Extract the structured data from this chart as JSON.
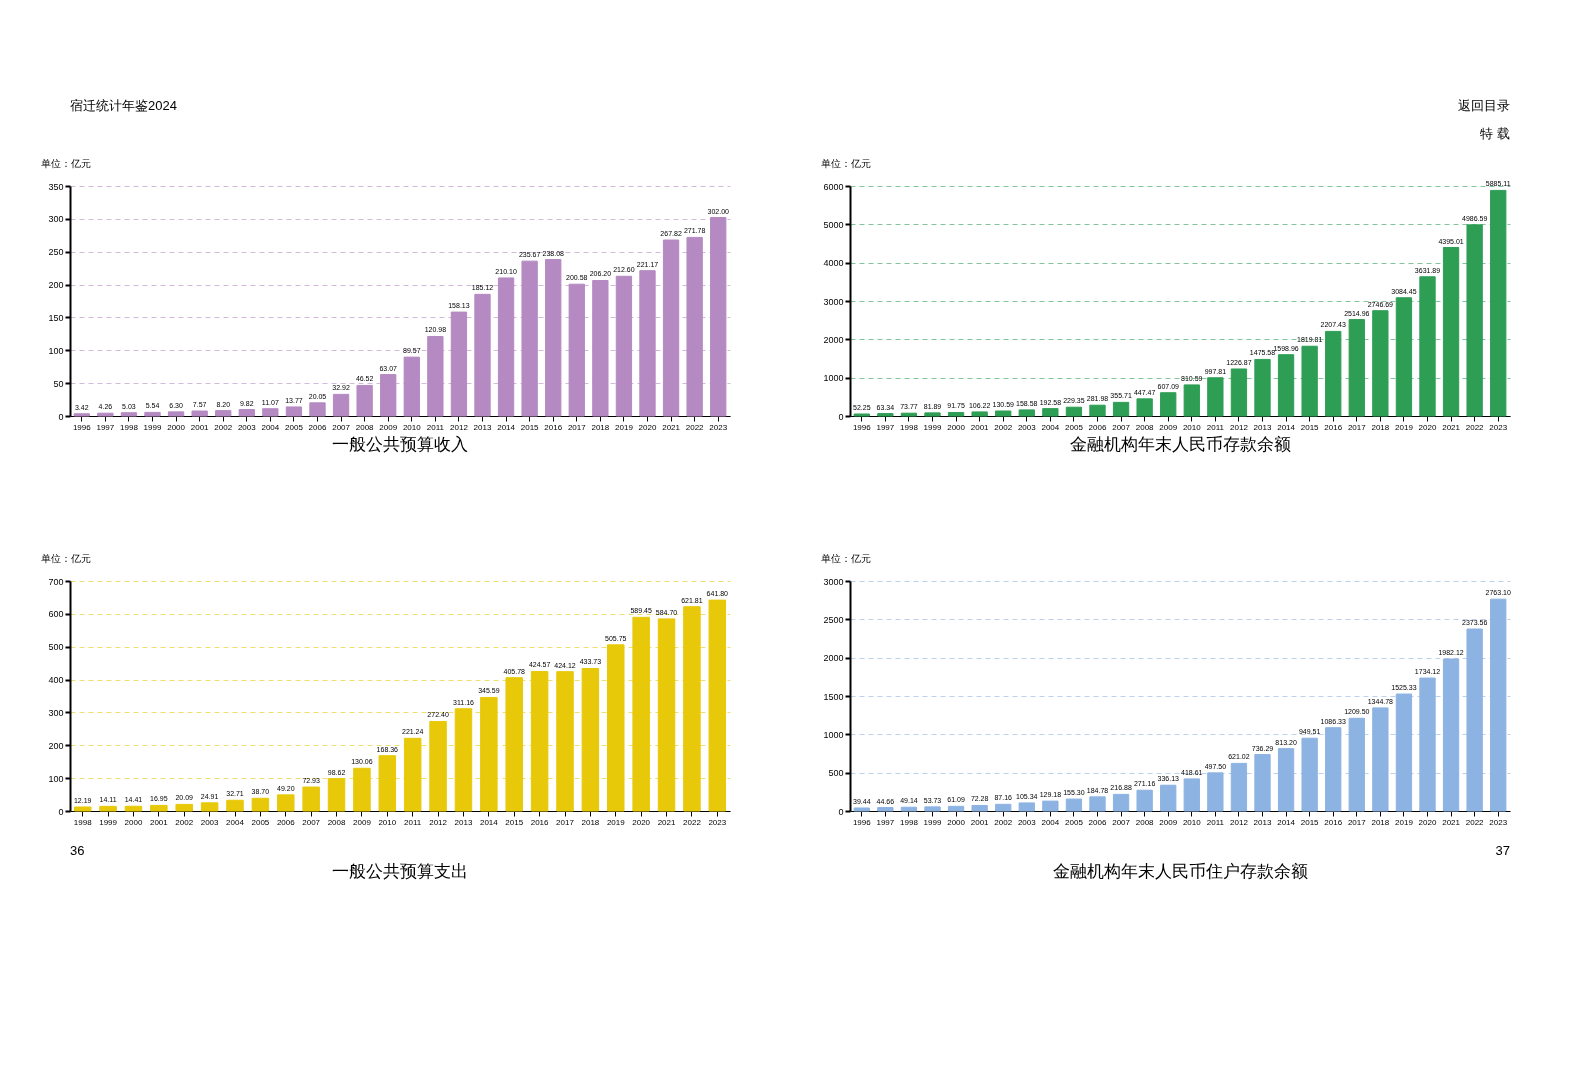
{
  "chart_data": [
    {
      "type": "bar",
      "title": "一般公共预算收入",
      "ylabel": "单位：亿元",
      "annotations": [
        "宿迁统计年鉴2024"
      ],
      "color": "#b58ac2",
      "grid": "y",
      "ylim": [
        0,
        350
      ],
      "yticks": [
        0,
        50,
        100,
        150,
        200,
        250,
        300,
        350
      ],
      "categories": [
        "1996",
        "1997",
        "1998",
        "1999",
        "2000",
        "2001",
        "2002",
        "2003",
        "2004",
        "2005",
        "2006",
        "2007",
        "2008",
        "2009",
        "2010",
        "2011",
        "2012",
        "2013",
        "2014",
        "2015",
        "2016",
        "2017",
        "2018",
        "2019",
        "2020",
        "2021",
        "2022",
        "2023"
      ],
      "values": [
        3.42,
        4.26,
        5.03,
        5.54,
        6.3,
        7.57,
        8.2,
        9.82,
        11.07,
        13.77,
        20.05,
        32.92,
        46.52,
        63.07,
        89.57,
        120.98,
        158.13,
        185.12,
        210.1,
        235.67,
        238.08,
        200.58,
        206.2,
        212.6,
        221.17,
        267.82,
        271.78,
        302.0
      ],
      "value_labels": [
        "3.42",
        "4.26",
        "5.03",
        "5.54",
        "6.30",
        "7.57",
        "8.20",
        "9.82",
        "11.07",
        "13.77",
        "20.05",
        "32.92",
        "46.52",
        "63.07",
        "89.57",
        "120.98",
        "158.13",
        "185.12",
        "210.10",
        "235.67",
        "238.08",
        "200.58",
        "206.20",
        "212.60",
        "221.17",
        "267.82",
        "271.78",
        "302.00"
      ]
    },
    {
      "type": "bar",
      "title": "金融机构年末人民币存款余额",
      "ylabel": "单位：亿元",
      "annotations": [
        "返回目录",
        "特  载"
      ],
      "color": "#2f9e55",
      "grid": "y",
      "ylim": [
        0,
        6000
      ],
      "yticks": [
        0,
        1000,
        2000,
        3000,
        4000,
        5000,
        6000
      ],
      "categories": [
        "1996",
        "1997",
        "1998",
        "1999",
        "2000",
        "2001",
        "2002",
        "2003",
        "2004",
        "2005",
        "2006",
        "2007",
        "2008",
        "2009",
        "2010",
        "2011",
        "2012",
        "2013",
        "2014",
        "2015",
        "2016",
        "2017",
        "2018",
        "2019",
        "2020",
        "2021",
        "2022",
        "2023"
      ],
      "values": [
        52.25,
        63.34,
        73.77,
        81.89,
        91.75,
        106.22,
        130.59,
        158.58,
        192.58,
        229.35,
        281.98,
        355.71,
        447.47,
        607.09,
        810.59,
        997.81,
        1226.87,
        1475.58,
        1598.96,
        1819.81,
        2207.43,
        2514.96,
        2746.69,
        3084.45,
        3631.89,
        4395.01,
        4986.59,
        5885.11
      ],
      "value_labels": [
        "52.25",
        "63.34",
        "73.77",
        "81.89",
        "91.75",
        "106.22",
        "130.59",
        "158.58",
        "192.58",
        "229.35",
        "281.98",
        "355.71",
        "447.47",
        "607.09",
        "810.59",
        "997.81",
        "1226.87",
        "1475.58",
        "1598.96",
        "1819.81",
        "2207.43",
        "2514.96",
        "2746.69",
        "3084.45",
        "3631.89",
        "4395.01",
        "4986.59",
        "5885.11"
      ]
    },
    {
      "type": "bar",
      "title": "一般公共预算支出",
      "ylabel": "单位：亿元",
      "annotations": [
        "36"
      ],
      "color": "#e8c90a",
      "grid": "y",
      "ylim": [
        0,
        700
      ],
      "yticks": [
        0,
        100,
        200,
        300,
        400,
        500,
        600,
        700
      ],
      "categories": [
        "1998",
        "1999",
        "2000",
        "2001",
        "2002",
        "2003",
        "2004",
        "2005",
        "2006",
        "2007",
        "2008",
        "2009",
        "2010",
        "2011",
        "2012",
        "2013",
        "2014",
        "2015",
        "2016",
        "2017",
        "2018",
        "2019",
        "2020",
        "2021",
        "2022",
        "2023"
      ],
      "values": [
        12.19,
        14.11,
        14.41,
        16.95,
        20.09,
        24.91,
        32.71,
        38.7,
        49.2,
        72.93,
        98.62,
        130.06,
        168.36,
        221.24,
        272.4,
        311.16,
        345.59,
        405.78,
        424.57,
        424.12,
        433.73,
        505.75,
        589.45,
        584.7,
        621.81,
        641.8
      ],
      "value_labels": [
        "12.19",
        "14.11",
        "14.41",
        "16.95",
        "20.09",
        "24.91",
        "32.71",
        "38.70",
        "49.20",
        "72.93",
        "98.62",
        "130.06",
        "168.36",
        "221.24",
        "272.40",
        "311.16",
        "345.59",
        "405.78",
        "424.57",
        "424.12",
        "433.73",
        "505.75",
        "589.45",
        "584.70",
        "621.81",
        "641.80"
      ]
    },
    {
      "type": "bar",
      "title": "金融机构年末人民币住户存款余额",
      "ylabel": "单位：亿元",
      "annotations": [
        "37"
      ],
      "color": "#8db3e2",
      "grid": "y",
      "ylim": [
        0,
        3000
      ],
      "yticks": [
        0,
        500,
        1000,
        1500,
        2000,
        2500,
        3000
      ],
      "categories": [
        "1996",
        "1997",
        "1998",
        "1999",
        "2000",
        "2001",
        "2002",
        "2003",
        "2004",
        "2005",
        "2006",
        "2007",
        "2008",
        "2009",
        "2010",
        "2011",
        "2012",
        "2013",
        "2014",
        "2015",
        "2016",
        "2017",
        "2018",
        "2019",
        "2020",
        "2021",
        "2022",
        "2023"
      ],
      "values": [
        39.44,
        44.66,
        49.14,
        53.73,
        61.09,
        72.28,
        87.16,
        105.34,
        129.18,
        155.3,
        184.78,
        216.88,
        271.16,
        336.13,
        418.61,
        497.5,
        621.02,
        736.29,
        813.2,
        949.51,
        1086.33,
        1209.5,
        1344.78,
        1525.33,
        1734.12,
        1982.12,
        2373.56,
        2763.1
      ],
      "value_labels": [
        "39.44",
        "44.66",
        "49.14",
        "53.73",
        "61.09",
        "72.28",
        "87.16",
        "105.34",
        "129.18",
        "155.30",
        "184.78",
        "216.88",
        "271.16",
        "336.13",
        "418.61",
        "497.50",
        "621.02",
        "736.29",
        "813.20",
        "949.51",
        "1086.33",
        "1209.50",
        "1344.78",
        "1525.33",
        "1734.12",
        "1982.12",
        "2373.56",
        "2763.10"
      ]
    }
  ]
}
